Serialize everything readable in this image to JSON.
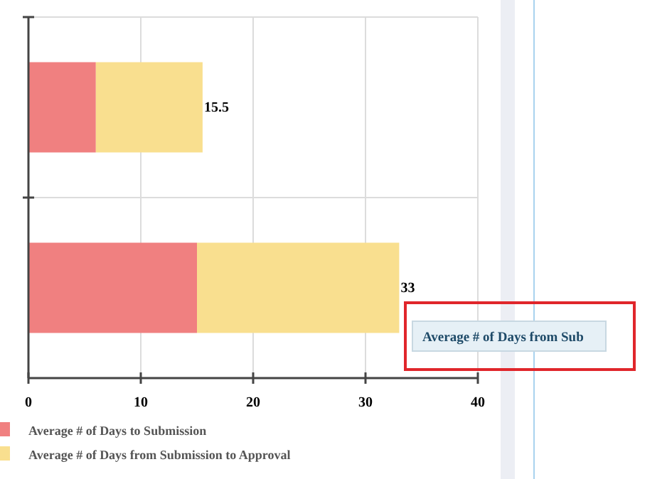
{
  "chart_data": {
    "type": "bar",
    "orientation": "horizontal",
    "stacked": true,
    "categories": [
      null,
      null
    ],
    "series": [
      {
        "name": "Average # of Days to Submission",
        "color": "#f08080",
        "values": [
          6,
          15
        ]
      },
      {
        "name": "Average # of Days from Submission to Approval",
        "color": "#f9df8f",
        "values": [
          9.5,
          18
        ]
      }
    ],
    "totals": [
      "15.5",
      "33"
    ],
    "xlim": [
      0,
      40
    ],
    "xticks": [
      0,
      10,
      20,
      30,
      40
    ],
    "grid": true,
    "legend": "bottom left",
    "annotations": [
      "Average # of Days from Sub"
    ]
  }
}
